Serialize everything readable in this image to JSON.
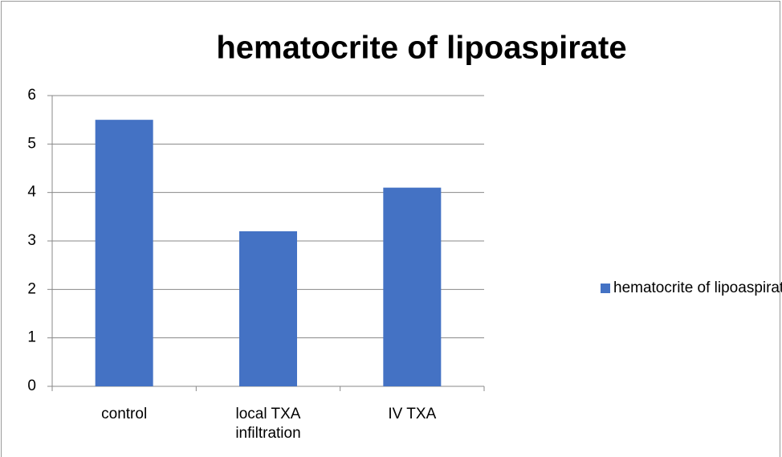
{
  "chart_data": {
    "type": "bar",
    "title": "hematocrite of lipoaspirate",
    "categories": [
      "control",
      "local TXA infiltration",
      "IV TXA"
    ],
    "series": [
      {
        "name": "hematocrite of lipoaspirate",
        "color": "#4472c4",
        "values": [
          5.5,
          3.2,
          4.1
        ]
      }
    ],
    "ylim": [
      0,
      6
    ],
    "yticks": [
      0,
      1,
      2,
      3,
      4,
      5,
      6
    ],
    "grid": true,
    "legend": "right"
  }
}
